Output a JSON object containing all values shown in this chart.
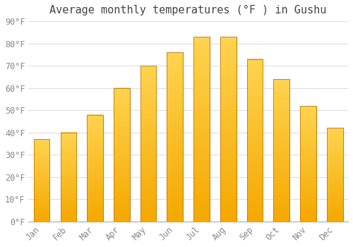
{
  "title": "Average monthly temperatures (°F ) in Gushu",
  "months": [
    "Jan",
    "Feb",
    "Mar",
    "Apr",
    "May",
    "Jun",
    "Jul",
    "Aug",
    "Sep",
    "Oct",
    "Nov",
    "Dec"
  ],
  "values": [
    37,
    40,
    48,
    60,
    70,
    76,
    83,
    83,
    73,
    64,
    52,
    42
  ],
  "bar_color_bottom": "#F5A800",
  "bar_color_top": "#FFD050",
  "bar_edge_color": "#C87800",
  "background_color": "#FFFFFF",
  "ylim": [
    0,
    90
  ],
  "yticks": [
    0,
    10,
    20,
    30,
    40,
    50,
    60,
    70,
    80,
    90
  ],
  "ytick_labels": [
    "0°F",
    "10°F",
    "20°F",
    "30°F",
    "40°F",
    "50°F",
    "60°F",
    "70°F",
    "80°F",
    "90°F"
  ],
  "title_fontsize": 11,
  "tick_fontsize": 8.5,
  "grid_color": "#DDDDDD",
  "title_color": "#444444",
  "tick_color": "#888888"
}
